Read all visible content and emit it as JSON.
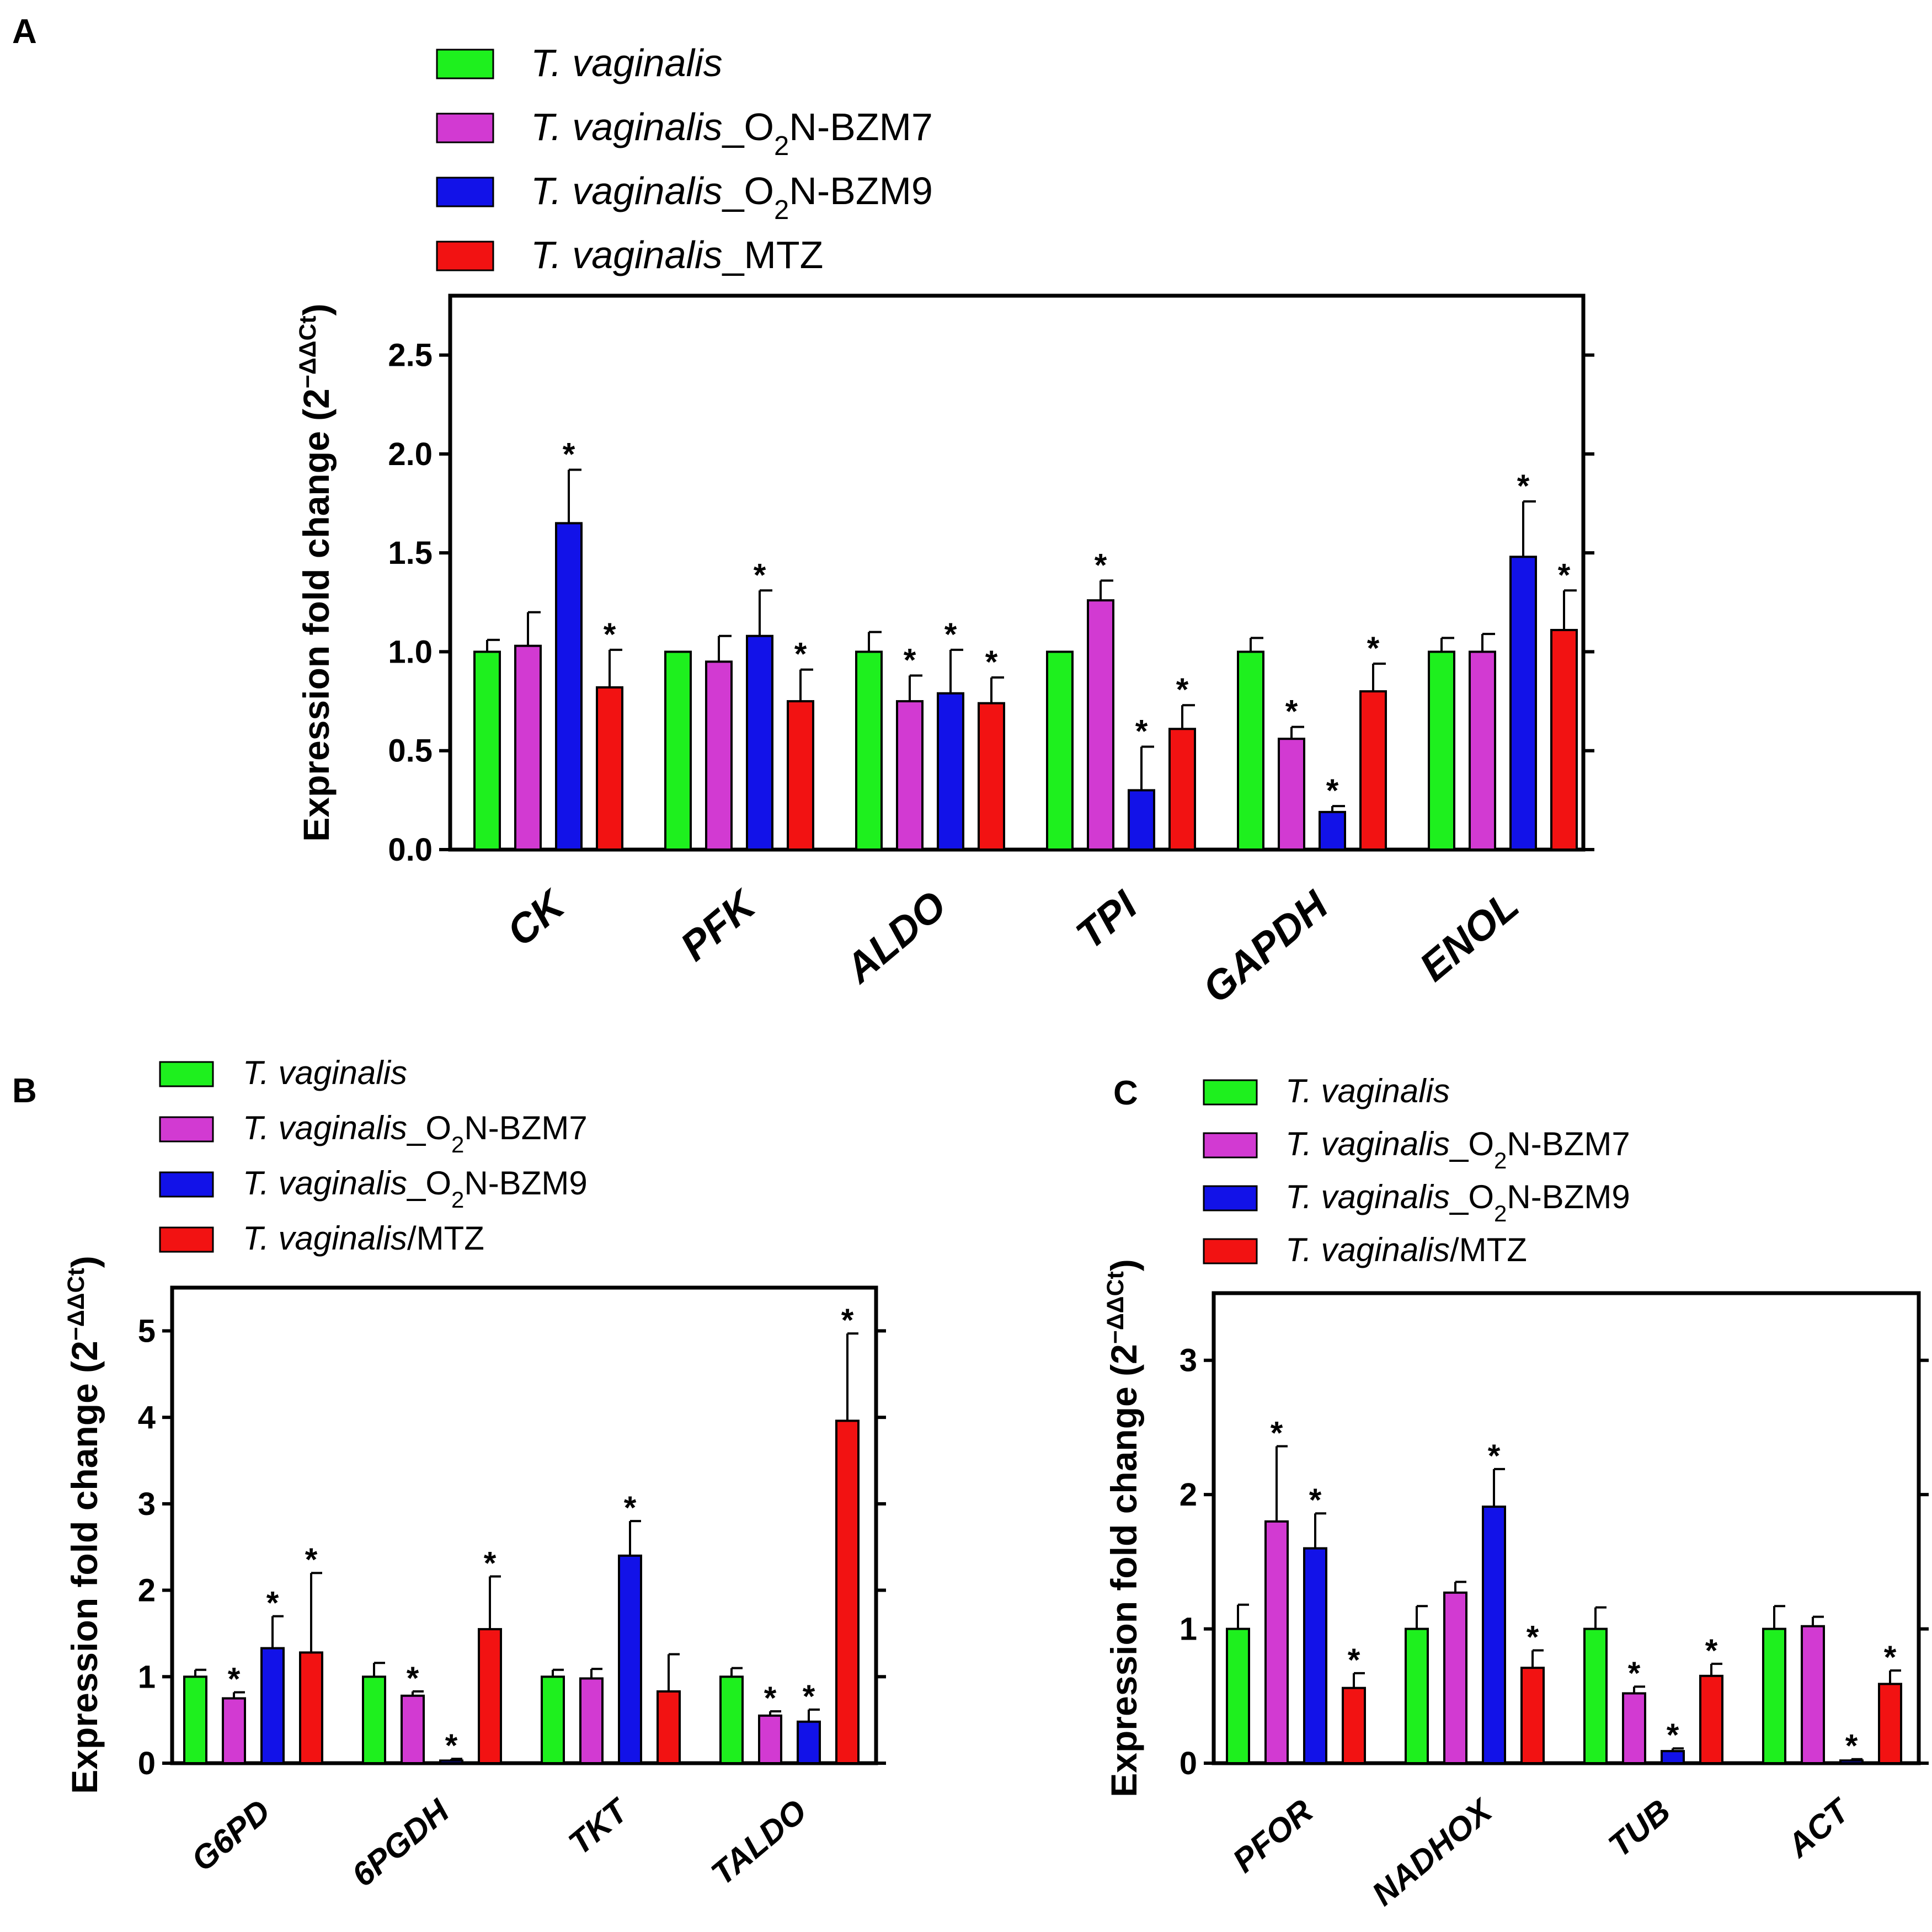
{
  "colors": {
    "T. vaginalis": "#1ef01e",
    "O2N-BZM7": "#d23ad2",
    "O2N-BZM9": "#1212e8",
    "MTZ": "#f21212"
  },
  "chart_data": [
    {
      "panel": "A",
      "type": "bar",
      "legend": [
        {
          "italic": "T. vaginalis",
          "plain": "",
          "sub": "",
          "tail": ""
        },
        {
          "italic": "T. vaginalis",
          "plain": "_O",
          "sub": "2",
          "tail": "N-BZM7"
        },
        {
          "italic": "T. vaginalis",
          "plain": "_O",
          "sub": "2",
          "tail": "N-BZM9"
        },
        {
          "italic": "T. vaginalis",
          "plain": "_MTZ",
          "sub": "",
          "tail": ""
        }
      ],
      "ylabel": "Expression fold change (2",
      "ylabel_sup": "−ΔΔCt",
      "ylabel_close": ")",
      "ylim": [
        0,
        2.8
      ],
      "yticks": [
        "0.0",
        "0.5",
        "1.0",
        "1.5",
        "2.0",
        "2.5"
      ],
      "categories": [
        "CK",
        "PFK",
        "ALDO",
        "TPI",
        "GAPDH",
        "ENOL"
      ],
      "series": [
        {
          "name": "T. vaginalis",
          "values": [
            1.0,
            1.0,
            1.0,
            1.0,
            1.0,
            1.0
          ],
          "errors": [
            0.06,
            0.0,
            0.1,
            0.0,
            0.07,
            0.07
          ],
          "sig": [
            "",
            "",
            "",
            "",
            "",
            ""
          ]
        },
        {
          "name": "T. vaginalis_O2N-BZM7",
          "values": [
            1.03,
            0.95,
            0.75,
            1.26,
            0.56,
            1.0
          ],
          "errors": [
            0.17,
            0.13,
            0.13,
            0.1,
            0.06,
            0.09
          ],
          "sig": [
            "",
            "",
            "*",
            "*",
            "*",
            ""
          ]
        },
        {
          "name": "T. vaginalis_O2N-BZM9",
          "values": [
            1.65,
            1.08,
            0.79,
            0.3,
            0.19,
            1.48
          ],
          "errors": [
            0.27,
            0.23,
            0.22,
            0.22,
            0.03,
            0.28
          ],
          "sig": [
            "*",
            "*",
            "*",
            "*",
            "*",
            "*"
          ]
        },
        {
          "name": "T. vaginalis_MTZ",
          "values": [
            0.82,
            0.75,
            0.74,
            0.61,
            0.8,
            1.11
          ],
          "errors": [
            0.19,
            0.16,
            0.13,
            0.12,
            0.14,
            0.2
          ],
          "sig": [
            "*",
            "*",
            "*",
            "*",
            "*",
            "*"
          ]
        }
      ]
    },
    {
      "panel": "B",
      "type": "bar",
      "legend": [
        {
          "italic": "T. vaginalis",
          "plain": "",
          "sub": "",
          "tail": ""
        },
        {
          "italic": "T. vaginalis",
          "plain": "_O",
          "sub": "2",
          "tail": "N-BZM7"
        },
        {
          "italic": "T. vaginalis",
          "plain": "_O",
          "sub": "2",
          "tail": "N-BZM9"
        },
        {
          "italic": "T. vaginalis",
          "plain": "/MTZ",
          "sub": "",
          "tail": ""
        }
      ],
      "ylabel": "Expression fold change (2",
      "ylabel_sup": "−ΔΔCt",
      "ylabel_close": ")",
      "ylim": [
        0,
        5.5
      ],
      "yticks": [
        "0",
        "1",
        "2",
        "3",
        "4",
        "5"
      ],
      "categories": [
        "G6PD",
        "6PGDH",
        "TKT",
        "TALDO"
      ],
      "series": [
        {
          "name": "T. vaginalis",
          "values": [
            1.0,
            1.0,
            1.0,
            1.0
          ],
          "errors": [
            0.08,
            0.16,
            0.08,
            0.1
          ],
          "sig": [
            "",
            "",
            "",
            ""
          ]
        },
        {
          "name": "T. vaginalis_O2N-BZM7",
          "values": [
            0.75,
            0.78,
            0.98,
            0.55
          ],
          "errors": [
            0.07,
            0.05,
            0.11,
            0.05
          ],
          "sig": [
            "*",
            "*",
            "",
            "*"
          ]
        },
        {
          "name": "T. vaginalis_O2N-BZM9",
          "values": [
            1.33,
            0.03,
            2.4,
            0.48
          ],
          "errors": [
            0.37,
            0.02,
            0.4,
            0.14
          ],
          "sig": [
            "*",
            "*",
            "*",
            "*"
          ]
        },
        {
          "name": "T. vaginalis/MTZ",
          "values": [
            1.28,
            1.55,
            0.83,
            3.96
          ],
          "errors": [
            0.92,
            0.61,
            0.43,
            1.01
          ],
          "sig": [
            "*",
            "*",
            "",
            "*"
          ]
        }
      ]
    },
    {
      "panel": "C",
      "type": "bar",
      "legend": [
        {
          "italic": "T. vaginalis",
          "plain": "",
          "sub": "",
          "tail": ""
        },
        {
          "italic": "T. vaginalis",
          "plain": "_O",
          "sub": "2",
          "tail": "N-BZM7"
        },
        {
          "italic": "T. vaginalis",
          "plain": "_O",
          "sub": "2",
          "tail": "N-BZM9"
        },
        {
          "italic": "T. vaginalis",
          "plain": "/MTZ",
          "sub": "",
          "tail": ""
        }
      ],
      "ylabel": "Expression fold change (2",
      "ylabel_sup": "−ΔΔCt",
      "ylabel_close": ")",
      "ylim": [
        0,
        3.5
      ],
      "yticks": [
        "0",
        "1",
        "2",
        "3"
      ],
      "categories": [
        "PFOR",
        "NADHOX",
        "TUB",
        "ACT"
      ],
      "series": [
        {
          "name": "T. vaginalis",
          "values": [
            1.0,
            1.0,
            1.0,
            1.0
          ],
          "errors": [
            0.18,
            0.17,
            0.16,
            0.17
          ],
          "sig": [
            "",
            "",
            "",
            ""
          ]
        },
        {
          "name": "T. vaginalis_O2N-BZM7",
          "values": [
            1.8,
            1.27,
            0.52,
            1.02
          ],
          "errors": [
            0.56,
            0.08,
            0.05,
            0.07
          ],
          "sig": [
            "*",
            "",
            "*",
            ""
          ]
        },
        {
          "name": "T. vaginalis_O2N-BZM9",
          "values": [
            1.6,
            1.91,
            0.09,
            0.02
          ],
          "errors": [
            0.26,
            0.28,
            0.02,
            0.01
          ],
          "sig": [
            "*",
            "*",
            "*",
            "*"
          ]
        },
        {
          "name": "T. vaginalis/MTZ",
          "values": [
            0.56,
            0.71,
            0.65,
            0.59
          ],
          "errors": [
            0.11,
            0.13,
            0.09,
            0.1
          ],
          "sig": [
            "*",
            "*",
            "*",
            "*"
          ]
        }
      ]
    }
  ]
}
